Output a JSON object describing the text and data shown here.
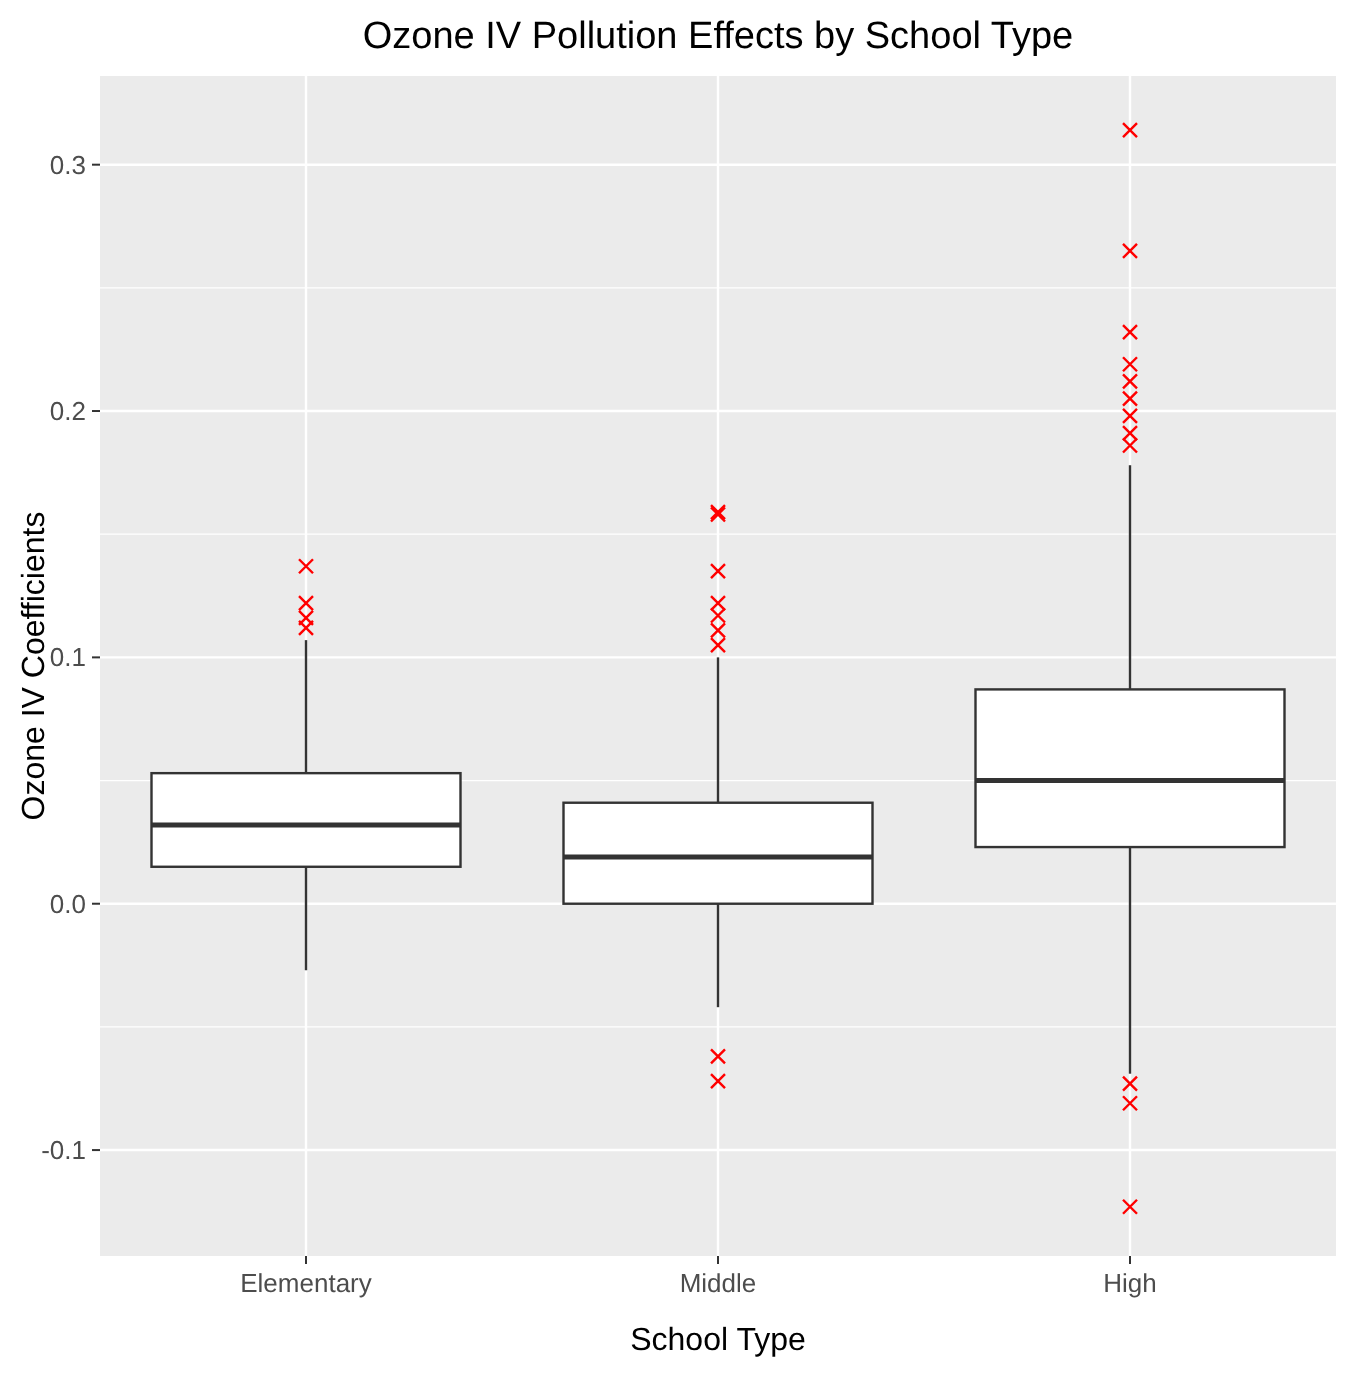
{
  "chart_data": {
    "type": "box",
    "title": "Ozone IV Pollution Effects by School Type",
    "xlabel": "School Type",
    "ylabel": "Ozone IV Coefficients",
    "categories": [
      "Elementary",
      "Middle",
      "High"
    ],
    "boxes": [
      {
        "low": -0.027,
        "q1": 0.015,
        "median": 0.032,
        "q3": 0.053,
        "high": 0.107
      },
      {
        "low": -0.042,
        "q1": 0.0,
        "median": 0.019,
        "q3": 0.041,
        "high": 0.1
      },
      {
        "low": -0.069,
        "q1": 0.023,
        "median": 0.05,
        "q3": 0.087,
        "high": 0.178
      }
    ],
    "color": "#ffffff",
    "series": [
      {
        "type": "scatter",
        "color": "#ff0000",
        "marker": "cross",
        "x": [
          "Elementary",
          "Elementary",
          "Elementary",
          "Elementary",
          "Middle",
          "Middle",
          "Middle",
          "Middle",
          "Middle",
          "Middle",
          "Middle",
          "Middle",
          "Middle",
          "High",
          "High",
          "High",
          "High",
          "High",
          "High",
          "High",
          "High",
          "High",
          "High",
          "High",
          "High"
        ],
        "values": [
          0.137,
          0.122,
          0.116,
          0.112,
          0.159,
          0.135,
          0.122,
          0.117,
          0.111,
          0.105,
          -0.062,
          -0.072,
          0.158,
          0.314,
          0.265,
          0.232,
          0.219,
          0.212,
          0.205,
          0.198,
          0.191,
          0.186,
          -0.073,
          -0.081,
          -0.123
        ]
      }
    ],
    "ylim": [
      -0.143,
      0.336
    ],
    "yticks": [
      {
        "value": -0.1,
        "label": "-0.1"
      },
      {
        "value": 0,
        "label": "0.0"
      },
      0.1,
      0.2,
      0.3
    ],
    "grid": true
  }
}
